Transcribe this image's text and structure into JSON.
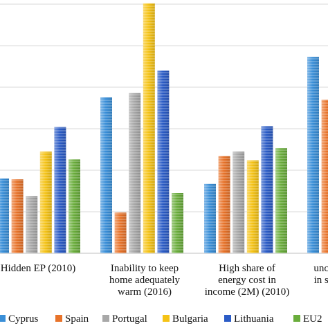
{
  "chart_data": {
    "type": "bar",
    "title": "",
    "xlabel": "",
    "ylabel": "",
    "grid": true,
    "legend_position": "bottom",
    "categories": [
      [
        "Hidden EP (2010)"
      ],
      [
        "Inability to keep",
        "home adequately",
        "warm (2016)"
      ],
      [
        "High share of",
        "energy cost in",
        "income (2M) (2010)"
      ],
      [
        "unco",
        "in su"
      ]
    ],
    "series": [
      {
        "name": "Cyprus",
        "color": "#3a8fd8",
        "values": [
          18.0,
          37.6,
          16.7,
          47.3
        ]
      },
      {
        "name": "Spain",
        "color": "#e8732a",
        "values": [
          17.8,
          9.8,
          23.4,
          37.0
        ]
      },
      {
        "name": "Portugal",
        "color": "#a8a8a8",
        "values": [
          13.8,
          38.6,
          24.5,
          null
        ]
      },
      {
        "name": "Bulgaria",
        "color": "#f5c316",
        "values": [
          24.5,
          60.2,
          22.4,
          null
        ]
      },
      {
        "name": "Lithuania",
        "color": "#2b5cc6",
        "values": [
          30.4,
          44.0,
          30.6,
          null
        ]
      },
      {
        "name": "EU2",
        "color": "#6aad3c",
        "values": [
          22.6,
          14.5,
          25.3,
          null
        ]
      }
    ]
  }
}
